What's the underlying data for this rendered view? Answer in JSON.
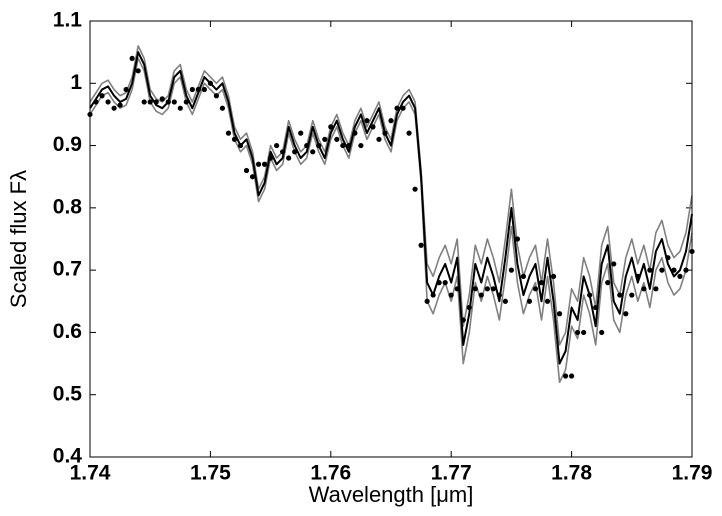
{
  "chart_data": {
    "type": "line",
    "x_label": "Wavelength [μm]",
    "y_label": "Scaled flux Fλ",
    "xlim": [
      1.74,
      1.79
    ],
    "xticks": [
      1.74,
      1.75,
      1.76,
      1.77,
      1.78,
      1.79
    ],
    "ylim": [
      0.4,
      1.1
    ],
    "yticks": [
      0.4,
      0.5,
      0.6,
      0.7,
      0.8,
      0.9,
      1,
      1.1
    ],
    "x": [
      1.74,
      1.7405,
      1.741,
      1.7415,
      1.742,
      1.7425,
      1.743,
      1.7435,
      1.744,
      1.7445,
      1.745,
      1.7455,
      1.746,
      1.7465,
      1.747,
      1.7475,
      1.748,
      1.7485,
      1.749,
      1.7495,
      1.75,
      1.7505,
      1.751,
      1.7515,
      1.752,
      1.7525,
      1.753,
      1.7535,
      1.754,
      1.7545,
      1.755,
      1.7555,
      1.756,
      1.7565,
      1.757,
      1.7575,
      1.758,
      1.7585,
      1.759,
      1.7595,
      1.76,
      1.7605,
      1.761,
      1.7615,
      1.762,
      1.7625,
      1.763,
      1.7635,
      1.764,
      1.7645,
      1.765,
      1.7655,
      1.766,
      1.7665,
      1.767,
      1.7675,
      1.768,
      1.7685,
      1.769,
      1.7695,
      1.77,
      1.7705,
      1.771,
      1.7715,
      1.772,
      1.7725,
      1.773,
      1.7735,
      1.774,
      1.7745,
      1.775,
      1.7755,
      1.776,
      1.7765,
      1.777,
      1.7775,
      1.778,
      1.7785,
      1.779,
      1.7795,
      1.78,
      1.7805,
      1.781,
      1.7815,
      1.782,
      1.7825,
      1.783,
      1.7835,
      1.784,
      1.7845,
      1.785,
      1.7855,
      1.786,
      1.7865,
      1.787,
      1.7875,
      1.788,
      1.7885,
      1.789,
      1.7895,
      1.79
    ],
    "series": [
      {
        "style": "line",
        "color": "#808080",
        "values": [
          0.97,
          0.985,
          1.0,
          1.005,
          0.99,
          0.98,
          0.985,
          1.01,
          1.06,
          1.04,
          0.99,
          0.975,
          0.97,
          0.98,
          1.02,
          1.03,
          0.99,
          0.97,
          0.995,
          1.02,
          1.01,
          1.0,
          1.01,
          0.98,
          0.93,
          0.91,
          0.92,
          0.89,
          0.83,
          0.85,
          0.9,
          0.88,
          0.89,
          0.94,
          0.91,
          0.89,
          0.9,
          0.94,
          0.91,
          0.89,
          0.93,
          0.95,
          0.92,
          0.9,
          0.94,
          0.96,
          0.93,
          0.95,
          0.97,
          0.93,
          0.91,
          0.96,
          0.98,
          0.99,
          0.97,
          0.86,
          0.71,
          0.69,
          0.72,
          0.74,
          0.71,
          0.75,
          0.61,
          0.66,
          0.74,
          0.71,
          0.75,
          0.72,
          0.68,
          0.75,
          0.83,
          0.74,
          0.69,
          0.72,
          0.74,
          0.68,
          0.75,
          0.68,
          0.58,
          0.6,
          0.67,
          0.65,
          0.72,
          0.69,
          0.64,
          0.74,
          0.77,
          0.68,
          0.66,
          0.72,
          0.75,
          0.71,
          0.74,
          0.7,
          0.76,
          0.78,
          0.74,
          0.72,
          0.73,
          0.76,
          0.82
        ]
      },
      {
        "style": "line",
        "color": "#808080",
        "values": [
          0.95,
          0.965,
          0.98,
          0.985,
          0.97,
          0.96,
          0.965,
          0.99,
          1.04,
          1.02,
          0.97,
          0.955,
          0.95,
          0.96,
          1.0,
          1.01,
          0.97,
          0.95,
          0.975,
          1.0,
          0.99,
          0.98,
          0.99,
          0.96,
          0.91,
          0.89,
          0.9,
          0.87,
          0.81,
          0.83,
          0.88,
          0.86,
          0.87,
          0.92,
          0.89,
          0.87,
          0.88,
          0.92,
          0.89,
          0.87,
          0.91,
          0.93,
          0.9,
          0.88,
          0.92,
          0.94,
          0.91,
          0.93,
          0.95,
          0.91,
          0.89,
          0.94,
          0.96,
          0.97,
          0.95,
          0.84,
          0.65,
          0.63,
          0.66,
          0.68,
          0.65,
          0.69,
          0.55,
          0.6,
          0.68,
          0.65,
          0.69,
          0.66,
          0.62,
          0.69,
          0.77,
          0.68,
          0.63,
          0.66,
          0.68,
          0.62,
          0.69,
          0.62,
          0.52,
          0.54,
          0.61,
          0.59,
          0.66,
          0.63,
          0.58,
          0.68,
          0.71,
          0.62,
          0.6,
          0.66,
          0.69,
          0.65,
          0.68,
          0.64,
          0.7,
          0.72,
          0.68,
          0.66,
          0.67,
          0.7,
          0.76
        ]
      },
      {
        "style": "line",
        "color": "#000000",
        "values": [
          0.96,
          0.975,
          0.99,
          0.995,
          0.98,
          0.97,
          0.975,
          1.0,
          1.05,
          1.03,
          0.98,
          0.965,
          0.96,
          0.97,
          1.01,
          1.02,
          0.98,
          0.96,
          0.985,
          1.01,
          1.0,
          0.99,
          1.0,
          0.97,
          0.92,
          0.9,
          0.91,
          0.88,
          0.82,
          0.84,
          0.89,
          0.87,
          0.88,
          0.93,
          0.9,
          0.88,
          0.89,
          0.93,
          0.9,
          0.88,
          0.92,
          0.94,
          0.91,
          0.89,
          0.93,
          0.95,
          0.92,
          0.94,
          0.96,
          0.92,
          0.9,
          0.95,
          0.97,
          0.98,
          0.96,
          0.85,
          0.68,
          0.66,
          0.69,
          0.71,
          0.68,
          0.72,
          0.58,
          0.63,
          0.71,
          0.68,
          0.72,
          0.69,
          0.65,
          0.72,
          0.8,
          0.71,
          0.66,
          0.69,
          0.71,
          0.65,
          0.72,
          0.65,
          0.55,
          0.57,
          0.64,
          0.62,
          0.69,
          0.66,
          0.61,
          0.71,
          0.74,
          0.65,
          0.63,
          0.69,
          0.72,
          0.68,
          0.71,
          0.67,
          0.73,
          0.75,
          0.71,
          0.69,
          0.7,
          0.73,
          0.79
        ]
      },
      {
        "style": "dots",
        "color": "#000000",
        "values": [
          0.95,
          0.97,
          0.98,
          0.97,
          0.96,
          0.965,
          0.99,
          1.04,
          1.02,
          0.97,
          0.97,
          0.97,
          0.975,
          0.97,
          0.97,
          0.96,
          0.97,
          0.99,
          0.99,
          0.99,
          1.0,
          0.98,
          0.96,
          0.92,
          0.91,
          0.9,
          0.86,
          0.85,
          0.87,
          0.87,
          0.88,
          0.9,
          0.89,
          0.88,
          0.89,
          0.92,
          0.9,
          0.89,
          0.9,
          0.91,
          0.93,
          0.91,
          0.9,
          0.9,
          0.92,
          0.9,
          0.94,
          0.93,
          0.91,
          0.92,
          0.94,
          0.96,
          0.96,
          0.92,
          0.83,
          0.74,
          0.65,
          0.66,
          0.68,
          0.68,
          0.66,
          0.67,
          0.62,
          0.64,
          0.67,
          0.66,
          0.67,
          0.67,
          0.66,
          0.65,
          0.7,
          0.75,
          0.69,
          0.65,
          0.67,
          0.68,
          0.65,
          0.69,
          0.63,
          0.53,
          0.53,
          0.6,
          0.6,
          0.66,
          0.64,
          0.6,
          0.68,
          0.71,
          0.66,
          0.63,
          0.66,
          0.69,
          0.67,
          0.7,
          0.67,
          0.7,
          0.72,
          0.7,
          0.69,
          0.7,
          0.73
        ]
      }
    ]
  }
}
